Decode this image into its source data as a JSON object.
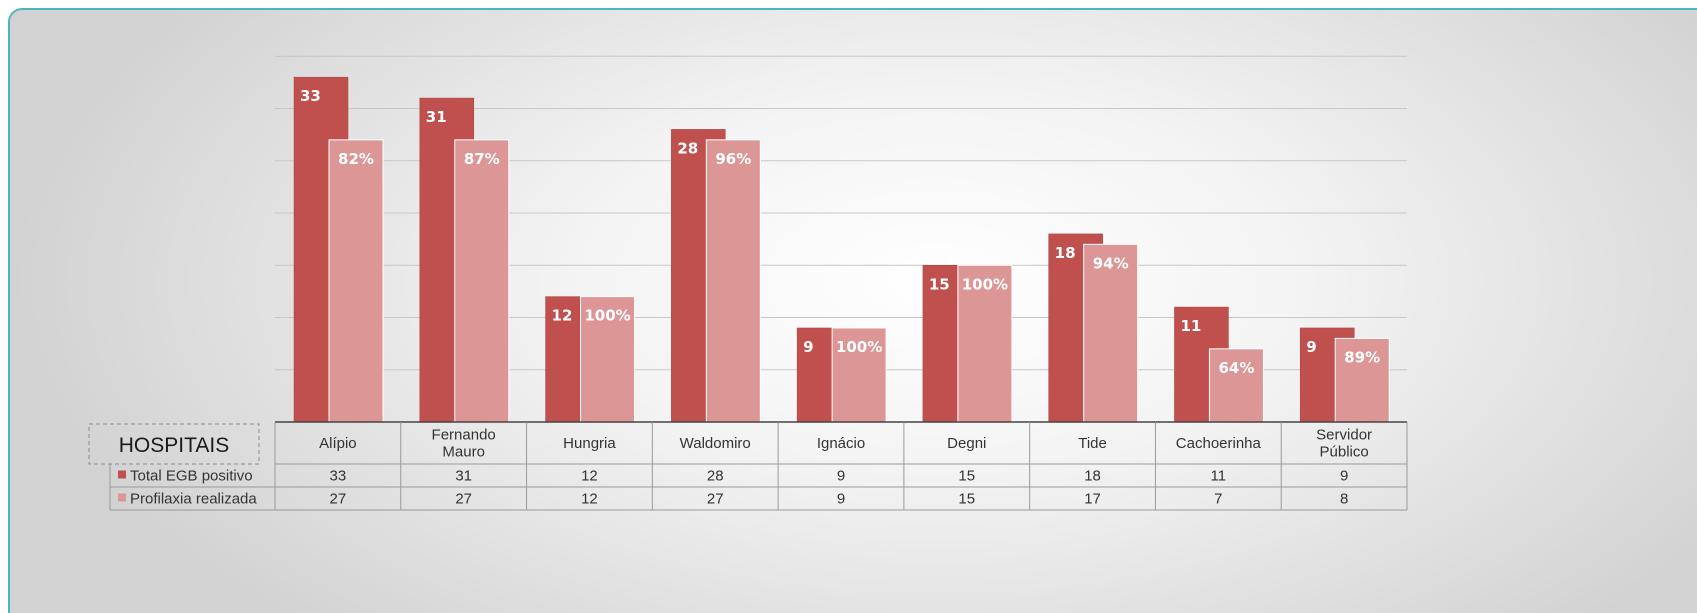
{
  "chart_data": {
    "type": "bar",
    "table_header": "HOSPITAIS",
    "categories": [
      [
        "Alípio"
      ],
      [
        "Fernando",
        "Mauro"
      ],
      [
        "Hungria"
      ],
      [
        "Waldomiro"
      ],
      [
        "Ignácio"
      ],
      [
        "Degni"
      ],
      [
        "Tide"
      ],
      [
        "Cachoerinha"
      ],
      [
        "Servidor",
        "Público"
      ]
    ],
    "series": [
      {
        "name": "Total EGB positivo",
        "color": "#c0504d",
        "values": [
          33,
          31,
          12,
          28,
          9,
          15,
          18,
          11,
          9
        ],
        "bar_labels": [
          "33",
          "31",
          "12",
          "28",
          "9",
          "15",
          "18",
          "11",
          "9"
        ]
      },
      {
        "name": "Profilaxia realizada",
        "color": "#dc9696",
        "values": [
          27,
          27,
          12,
          27,
          9,
          15,
          17,
          7,
          8
        ],
        "bar_labels": [
          "82%",
          "87%",
          "100%",
          "96%",
          "100%",
          "100%",
          "94%",
          "64%",
          "89%"
        ]
      }
    ],
    "ylim": [
      0,
      35
    ],
    "grid": true,
    "legend": "data-table"
  }
}
